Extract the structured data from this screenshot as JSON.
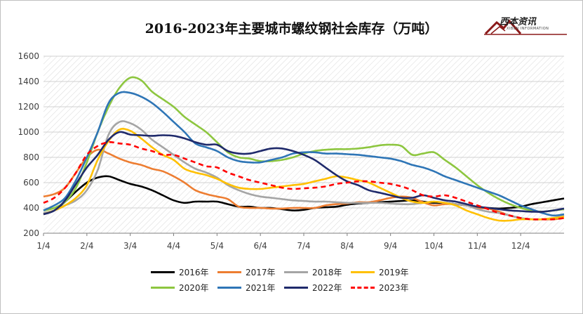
{
  "chart_data": {
    "type": "line",
    "title": "2016-2023年主要城市螺纹钢社会库存（万吨）",
    "brand": {
      "name": "西本资讯",
      "subtitle": "XIBEN INFORMATION"
    },
    "xlabel": "",
    "ylabel": "",
    "ylim": [
      200,
      1600
    ],
    "yticks": [
      200,
      400,
      600,
      800,
      1000,
      1200,
      1400,
      1600
    ],
    "x_tick_labels": [
      "1/4",
      "2/4",
      "3/4",
      "4/4",
      "5/4",
      "6/4",
      "7/4",
      "8/4",
      "9/4",
      "10/4",
      "11/4",
      "12/4"
    ],
    "grid": true,
    "legend_position": "bottom",
    "x": [
      0,
      0.25,
      0.5,
      0.75,
      1,
      1.25,
      1.5,
      1.75,
      2,
      2.25,
      2.5,
      2.75,
      3,
      3.25,
      3.5,
      3.75,
      4,
      4.25,
      4.5,
      4.75,
      5,
      5.25,
      5.5,
      5.75,
      6,
      6.25,
      6.5,
      6.75,
      7,
      7.25,
      7.5,
      7.75,
      8,
      8.25,
      8.5,
      8.75,
      9,
      9.25,
      9.5,
      9.75,
      10,
      10.25,
      10.5,
      10.75,
      11,
      11.25,
      11.5,
      11.75,
      12
    ],
    "series": [
      {
        "name": "2016年",
        "color": "#000000",
        "dashed": false,
        "values": [
          350,
          380,
          450,
          530,
          600,
          640,
          650,
          620,
          590,
          570,
          540,
          500,
          460,
          440,
          450,
          450,
          450,
          430,
          410,
          410,
          400,
          400,
          390,
          380,
          385,
          400,
          405,
          410,
          425,
          435,
          440,
          445,
          450,
          455,
          460,
          450,
          440,
          440,
          430,
          420,
          410,
          400,
          395,
          400,
          410,
          430,
          445,
          460,
          475
        ]
      },
      {
        "name": "2017年",
        "color": "#ed7d31",
        "dashed": false,
        "values": [
          490,
          510,
          560,
          680,
          800,
          860,
          830,
          790,
          760,
          740,
          710,
          690,
          650,
          600,
          540,
          510,
          490,
          470,
          410,
          400,
          400,
          395,
          395,
          400,
          400,
          400,
          420,
          430,
          435,
          445,
          445,
          460,
          480,
          490,
          480,
          445,
          420,
          430,
          430,
          420,
          400,
          395,
          370,
          340,
          320,
          310,
          310,
          310,
          320
        ]
      },
      {
        "name": "2018年",
        "color": "#a5a5a5",
        "dashed": false,
        "values": [
          360,
          380,
          420,
          460,
          540,
          700,
          980,
          1080,
          1070,
          1020,
          940,
          880,
          820,
          760,
          710,
          680,
          640,
          580,
          540,
          510,
          490,
          480,
          470,
          460,
          455,
          450,
          450,
          445,
          440,
          440,
          440,
          440,
          435,
          430,
          430,
          440,
          450,
          440,
          430,
          420,
          390,
          370,
          360,
          340,
          320,
          310,
          310,
          320,
          340
        ]
      },
      {
        "name": "2019年",
        "color": "#ffc000",
        "dashed": false,
        "values": [
          350,
          380,
          420,
          480,
          580,
          780,
          930,
          1020,
          1010,
          950,
          880,
          820,
          780,
          710,
          680,
          660,
          630,
          590,
          560,
          550,
          550,
          560,
          570,
          580,
          590,
          610,
          630,
          650,
          640,
          620,
          600,
          560,
          520,
          480,
          450,
          440,
          450,
          440,
          420,
          380,
          350,
          320,
          300,
          300,
          310,
          310,
          310,
          320,
          330
        ]
      },
      {
        "name": "2020年",
        "color": "#8dc63f",
        "dashed": false,
        "values": [
          380,
          400,
          450,
          560,
          760,
          1000,
          1200,
          1350,
          1430,
          1410,
          1320,
          1260,
          1200,
          1120,
          1060,
          1000,
          920,
          840,
          800,
          790,
          770,
          770,
          780,
          800,
          830,
          850,
          860,
          865,
          865,
          870,
          880,
          895,
          900,
          890,
          820,
          830,
          840,
          780,
          720,
          650,
          580,
          520,
          470,
          430,
          400,
          380,
          370,
          380,
          390
        ]
      },
      {
        "name": "2021年",
        "color": "#2e75b6",
        "dashed": false,
        "values": [
          380,
          420,
          480,
          620,
          800,
          1000,
          1230,
          1310,
          1310,
          1280,
          1230,
          1160,
          1080,
          1000,
          910,
          880,
          850,
          800,
          770,
          760,
          760,
          780,
          800,
          830,
          840,
          840,
          830,
          830,
          825,
          820,
          810,
          800,
          790,
          770,
          740,
          720,
          690,
          650,
          620,
          590,
          560,
          530,
          500,
          460,
          420,
          390,
          360,
          340,
          350
        ]
      },
      {
        "name": "2022年",
        "color": "#1f2a6b",
        "dashed": false,
        "values": [
          350,
          380,
          460,
          590,
          720,
          820,
          940,
          1000,
          980,
          975,
          970,
          975,
          970,
          950,
          920,
          900,
          900,
          850,
          830,
          830,
          850,
          870,
          870,
          850,
          820,
          780,
          720,
          660,
          610,
          580,
          540,
          520,
          500,
          480,
          480,
          500,
          480,
          460,
          450,
          430,
          410,
          400,
          390,
          380,
          375,
          370,
          370,
          380,
          395
        ]
      },
      {
        "name": "2023年",
        "color": "#ff0000",
        "dashed": true,
        "values": [
          440,
          480,
          560,
          680,
          820,
          890,
          920,
          910,
          900,
          870,
          850,
          820,
          820,
          790,
          760,
          730,
          720,
          680,
          650,
          620,
          600,
          580,
          560,
          550,
          555,
          560,
          570,
          590,
          600,
          610,
          610,
          600,
          590,
          570,
          540,
          500,
          490,
          500,
          480,
          450,
          420,
          390,
          360,
          340,
          320,
          310,
          310,
          310,
          320
        ]
      }
    ]
  }
}
